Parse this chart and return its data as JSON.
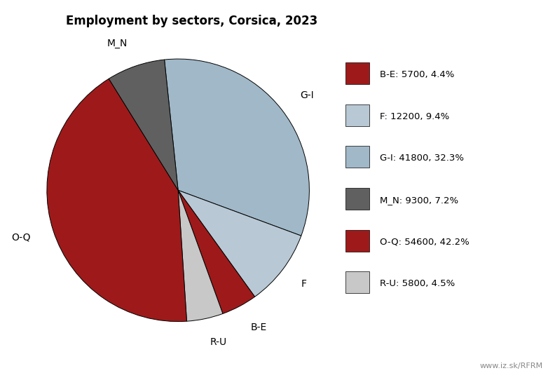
{
  "title": "Employment by sectors, Corsica, 2023",
  "sectors_ordered": [
    "G-I",
    "F",
    "B-E",
    "R-U",
    "O-Q",
    "M_N"
  ],
  "values_ordered": [
    41800,
    12200,
    5700,
    5800,
    54600,
    9300
  ],
  "colors_ordered": [
    "#a0b8c8",
    "#b8c8d4",
    "#9e1a1a",
    "#c8c8c8",
    "#9e1a1a",
    "#606060"
  ],
  "legend_labels": [
    "B-E: 5700, 4.4%",
    "F: 12200, 9.4%",
    "G-I: 41800, 32.3%",
    "M_N: 9300, 7.2%",
    "O-Q: 54600, 42.2%",
    "R-U: 5800, 4.5%"
  ],
  "legend_colors": [
    "#9e1a1a",
    "#b8c8d4",
    "#a0b8c8",
    "#606060",
    "#9e1a1a",
    "#c8c8c8"
  ],
  "startangle": 96,
  "watermark": "www.iz.sk/RFRM",
  "title_fontsize": 12,
  "label_fontsize": 10,
  "legend_fontsize": 9.5
}
